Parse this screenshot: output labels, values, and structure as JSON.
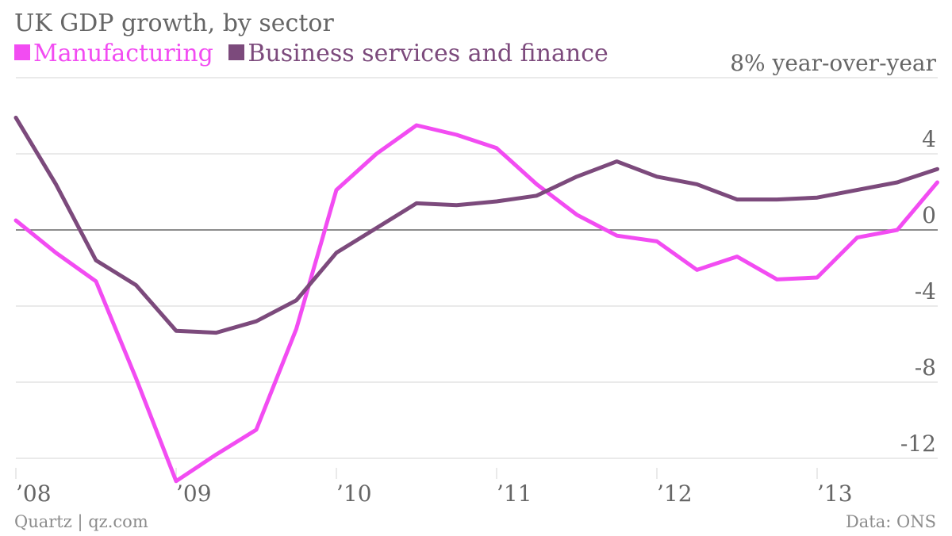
{
  "chart_data": {
    "type": "line",
    "title": "UK GDP growth, by sector",
    "ylabel": "",
    "xlabel": "",
    "y_unit_label": "8% year-over-year",
    "ylim": [
      -13.2,
      8
    ],
    "y_ticks": [
      8,
      4,
      0,
      -4,
      -8,
      -12
    ],
    "y_tick_labels": [
      "8% year-over-year",
      "4",
      "0",
      "-4",
      "-8",
      "-12"
    ],
    "x_ticks": [
      2008,
      2009,
      2010,
      2011,
      2012,
      2013
    ],
    "x_tick_labels": [
      "’08",
      "’09",
      "’10",
      "’11",
      "’12",
      "’13"
    ],
    "xlim": [
      2008,
      2013.75
    ],
    "grid": true,
    "legend_position": "top-left",
    "series": [
      {
        "name": "Manufacturing",
        "color": "#f24cf2",
        "x": [
          2008,
          2008.25,
          2008.5,
          2008.75,
          2009,
          2009.25,
          2009.5,
          2009.75,
          2010,
          2010.25,
          2010.5,
          2010.75,
          2011,
          2011.25,
          2011.5,
          2011.75,
          2012,
          2012.25,
          2012.5,
          2012.75,
          2013,
          2013.25,
          2013.5,
          2013.75
        ],
        "values": [
          0.5,
          -1.2,
          -2.7,
          -7.8,
          -13.2,
          -11.8,
          -10.5,
          -5.2,
          2.1,
          4.0,
          5.5,
          5.0,
          4.3,
          2.4,
          0.8,
          -0.3,
          -0.6,
          -2.1,
          -1.4,
          -2.6,
          -2.5,
          -0.4,
          0.0,
          2.5
        ]
      },
      {
        "name": "Business services and finance",
        "color": "#7c4a7c",
        "x": [
          2008,
          2008.25,
          2008.5,
          2008.75,
          2009,
          2009.25,
          2009.5,
          2009.75,
          2010,
          2010.25,
          2010.5,
          2010.75,
          2011,
          2011.25,
          2011.5,
          2011.75,
          2012,
          2012.25,
          2012.5,
          2012.75,
          2013,
          2013.25,
          2013.5,
          2013.75
        ],
        "values": [
          5.9,
          2.4,
          -1.6,
          -2.9,
          -5.3,
          -5.4,
          -4.8,
          -3.7,
          -1.2,
          0.1,
          1.4,
          1.3,
          1.5,
          1.8,
          2.8,
          3.6,
          2.8,
          2.4,
          1.6,
          1.6,
          1.7,
          2.1,
          2.5,
          3.2
        ]
      }
    ]
  },
  "footer": {
    "source_left": "Quartz | qz.com",
    "source_right": "Data: ONS"
  },
  "colors": {
    "axis_text": "#666666",
    "grid": "#e3e3e3",
    "zero_line": "#666666"
  }
}
